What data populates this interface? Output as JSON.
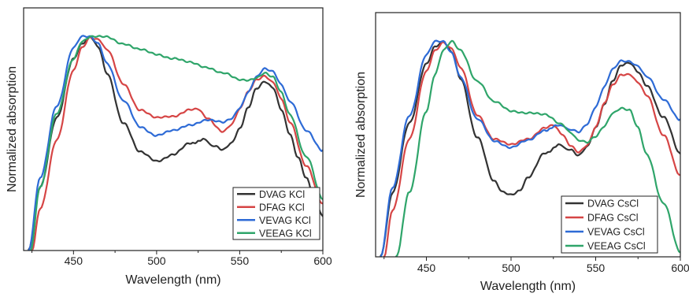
{
  "chart_data": [
    {
      "type": "line",
      "title": "",
      "xlabel": "Wavelength (nm)",
      "ylabel": "Normalized absorption",
      "xlim": [
        420,
        600
      ],
      "ylim": [
        0,
        1
      ],
      "grid": false,
      "y_tick_labels": false,
      "x_ticks": [
        450,
        500,
        550,
        600
      ],
      "x_tick_labels": [
        "450",
        "500",
        "550",
        "600"
      ],
      "legend_position": "bottom-right",
      "series": [
        {
          "name": "DVAG KCl",
          "color": "#333333",
          "x": [
            423,
            430,
            440,
            450,
            455,
            460,
            465,
            470,
            480,
            490,
            500,
            510,
            520,
            528,
            535,
            540,
            545,
            550,
            555,
            560,
            565,
            570,
            575,
            580,
            585,
            590,
            595,
            600
          ],
          "y": [
            0.0,
            0.3,
            0.62,
            0.9,
            0.97,
            1.0,
            0.95,
            0.83,
            0.6,
            0.46,
            0.42,
            0.45,
            0.5,
            0.52,
            0.49,
            0.47,
            0.5,
            0.57,
            0.67,
            0.76,
            0.79,
            0.76,
            0.66,
            0.55,
            0.44,
            0.34,
            0.24,
            0.16
          ]
        },
        {
          "name": "DFAG KCl",
          "color": "#d64545",
          "x": [
            425,
            430,
            440,
            450,
            455,
            460,
            465,
            470,
            480,
            490,
            500,
            510,
            520,
            525,
            530,
            540,
            545,
            550,
            555,
            560,
            565,
            570,
            575,
            580,
            590,
            600
          ],
          "y": [
            0.0,
            0.2,
            0.52,
            0.84,
            0.95,
            1.0,
            0.99,
            0.94,
            0.78,
            0.66,
            0.62,
            0.63,
            0.66,
            0.66,
            0.62,
            0.56,
            0.59,
            0.66,
            0.74,
            0.8,
            0.82,
            0.79,
            0.71,
            0.6,
            0.4,
            0.22
          ]
        },
        {
          "name": "VEVAG KCl",
          "color": "#2e6bd6",
          "x": [
            423,
            430,
            440,
            450,
            455,
            460,
            465,
            470,
            480,
            490,
            500,
            510,
            520,
            530,
            540,
            545,
            550,
            555,
            560,
            565,
            570,
            575,
            580,
            590,
            600
          ],
          "y": [
            0.0,
            0.34,
            0.68,
            0.95,
            1.0,
            1.0,
            0.97,
            0.88,
            0.7,
            0.58,
            0.54,
            0.56,
            0.59,
            0.61,
            0.6,
            0.62,
            0.67,
            0.74,
            0.81,
            0.85,
            0.84,
            0.78,
            0.7,
            0.56,
            0.47
          ]
        },
        {
          "name": "VEEAG KCl",
          "color": "#2fa56a",
          "x": [
            424,
            430,
            440,
            450,
            455,
            460,
            465,
            470,
            480,
            490,
            500,
            510,
            520,
            530,
            540,
            550,
            555,
            560,
            565,
            570,
            575,
            580,
            590,
            600
          ],
          "y": [
            0.0,
            0.3,
            0.64,
            0.9,
            0.98,
            1.0,
            1.0,
            1.0,
            0.97,
            0.94,
            0.92,
            0.9,
            0.88,
            0.86,
            0.83,
            0.8,
            0.8,
            0.81,
            0.83,
            0.81,
            0.74,
            0.64,
            0.44,
            0.24
          ]
        }
      ]
    },
    {
      "type": "line",
      "title": "",
      "xlabel": "Wavelength (nm)",
      "ylabel": "Normalized absorption",
      "xlim": [
        420,
        600
      ],
      "ylim": [
        0,
        1
      ],
      "grid": false,
      "y_tick_labels": false,
      "x_ticks": [
        450,
        500,
        550,
        600
      ],
      "x_tick_labels": [
        "450",
        "500",
        "550",
        "600"
      ],
      "legend_position": "bottom-right",
      "series": [
        {
          "name": "DVAG CsCl",
          "color": "#333333",
          "x": [
            423,
            430,
            440,
            450,
            455,
            460,
            465,
            470,
            480,
            490,
            495,
            500,
            505,
            510,
            520,
            528,
            535,
            540,
            545,
            550,
            555,
            560,
            565,
            570,
            575,
            580,
            590,
            600
          ],
          "y": [
            0.0,
            0.3,
            0.62,
            0.9,
            0.98,
            1.0,
            0.95,
            0.83,
            0.56,
            0.35,
            0.3,
            0.29,
            0.31,
            0.37,
            0.48,
            0.52,
            0.5,
            0.47,
            0.51,
            0.6,
            0.71,
            0.82,
            0.89,
            0.9,
            0.86,
            0.8,
            0.65,
            0.48
          ]
        },
        {
          "name": "DFAG CsCl",
          "color": "#d64545",
          "x": [
            425,
            430,
            440,
            450,
            455,
            460,
            465,
            470,
            480,
            490,
            500,
            510,
            520,
            525,
            530,
            535,
            540,
            545,
            550,
            555,
            560,
            565,
            570,
            575,
            580,
            590,
            600
          ],
          "y": [
            0.0,
            0.22,
            0.55,
            0.86,
            0.96,
            1.0,
            0.97,
            0.88,
            0.66,
            0.55,
            0.52,
            0.55,
            0.6,
            0.61,
            0.57,
            0.52,
            0.49,
            0.52,
            0.6,
            0.71,
            0.8,
            0.85,
            0.85,
            0.81,
            0.75,
            0.57,
            0.38
          ]
        },
        {
          "name": "VEVAG CsCl",
          "color": "#2e6bd6",
          "x": [
            423,
            430,
            440,
            450,
            455,
            460,
            465,
            470,
            480,
            490,
            500,
            510,
            520,
            528,
            535,
            540,
            545,
            550,
            555,
            560,
            565,
            570,
            575,
            580,
            590,
            600
          ],
          "y": [
            0.0,
            0.32,
            0.66,
            0.94,
            1.0,
            1.0,
            0.95,
            0.84,
            0.64,
            0.54,
            0.51,
            0.54,
            0.59,
            0.61,
            0.59,
            0.58,
            0.62,
            0.7,
            0.79,
            0.87,
            0.91,
            0.91,
            0.89,
            0.84,
            0.73,
            0.64
          ]
        },
        {
          "name": "VEEAG CsCl",
          "color": "#2fa56a",
          "x": [
            432,
            440,
            450,
            455,
            460,
            465,
            470,
            480,
            490,
            500,
            510,
            520,
            530,
            535,
            540,
            545,
            550,
            555,
            560,
            565,
            570,
            575,
            580,
            590,
            600
          ],
          "y": [
            0.0,
            0.3,
            0.68,
            0.85,
            0.96,
            1.0,
            0.96,
            0.82,
            0.72,
            0.68,
            0.67,
            0.66,
            0.62,
            0.58,
            0.54,
            0.53,
            0.56,
            0.61,
            0.67,
            0.69,
            0.68,
            0.6,
            0.48,
            0.25,
            0.02
          ]
        }
      ]
    }
  ]
}
